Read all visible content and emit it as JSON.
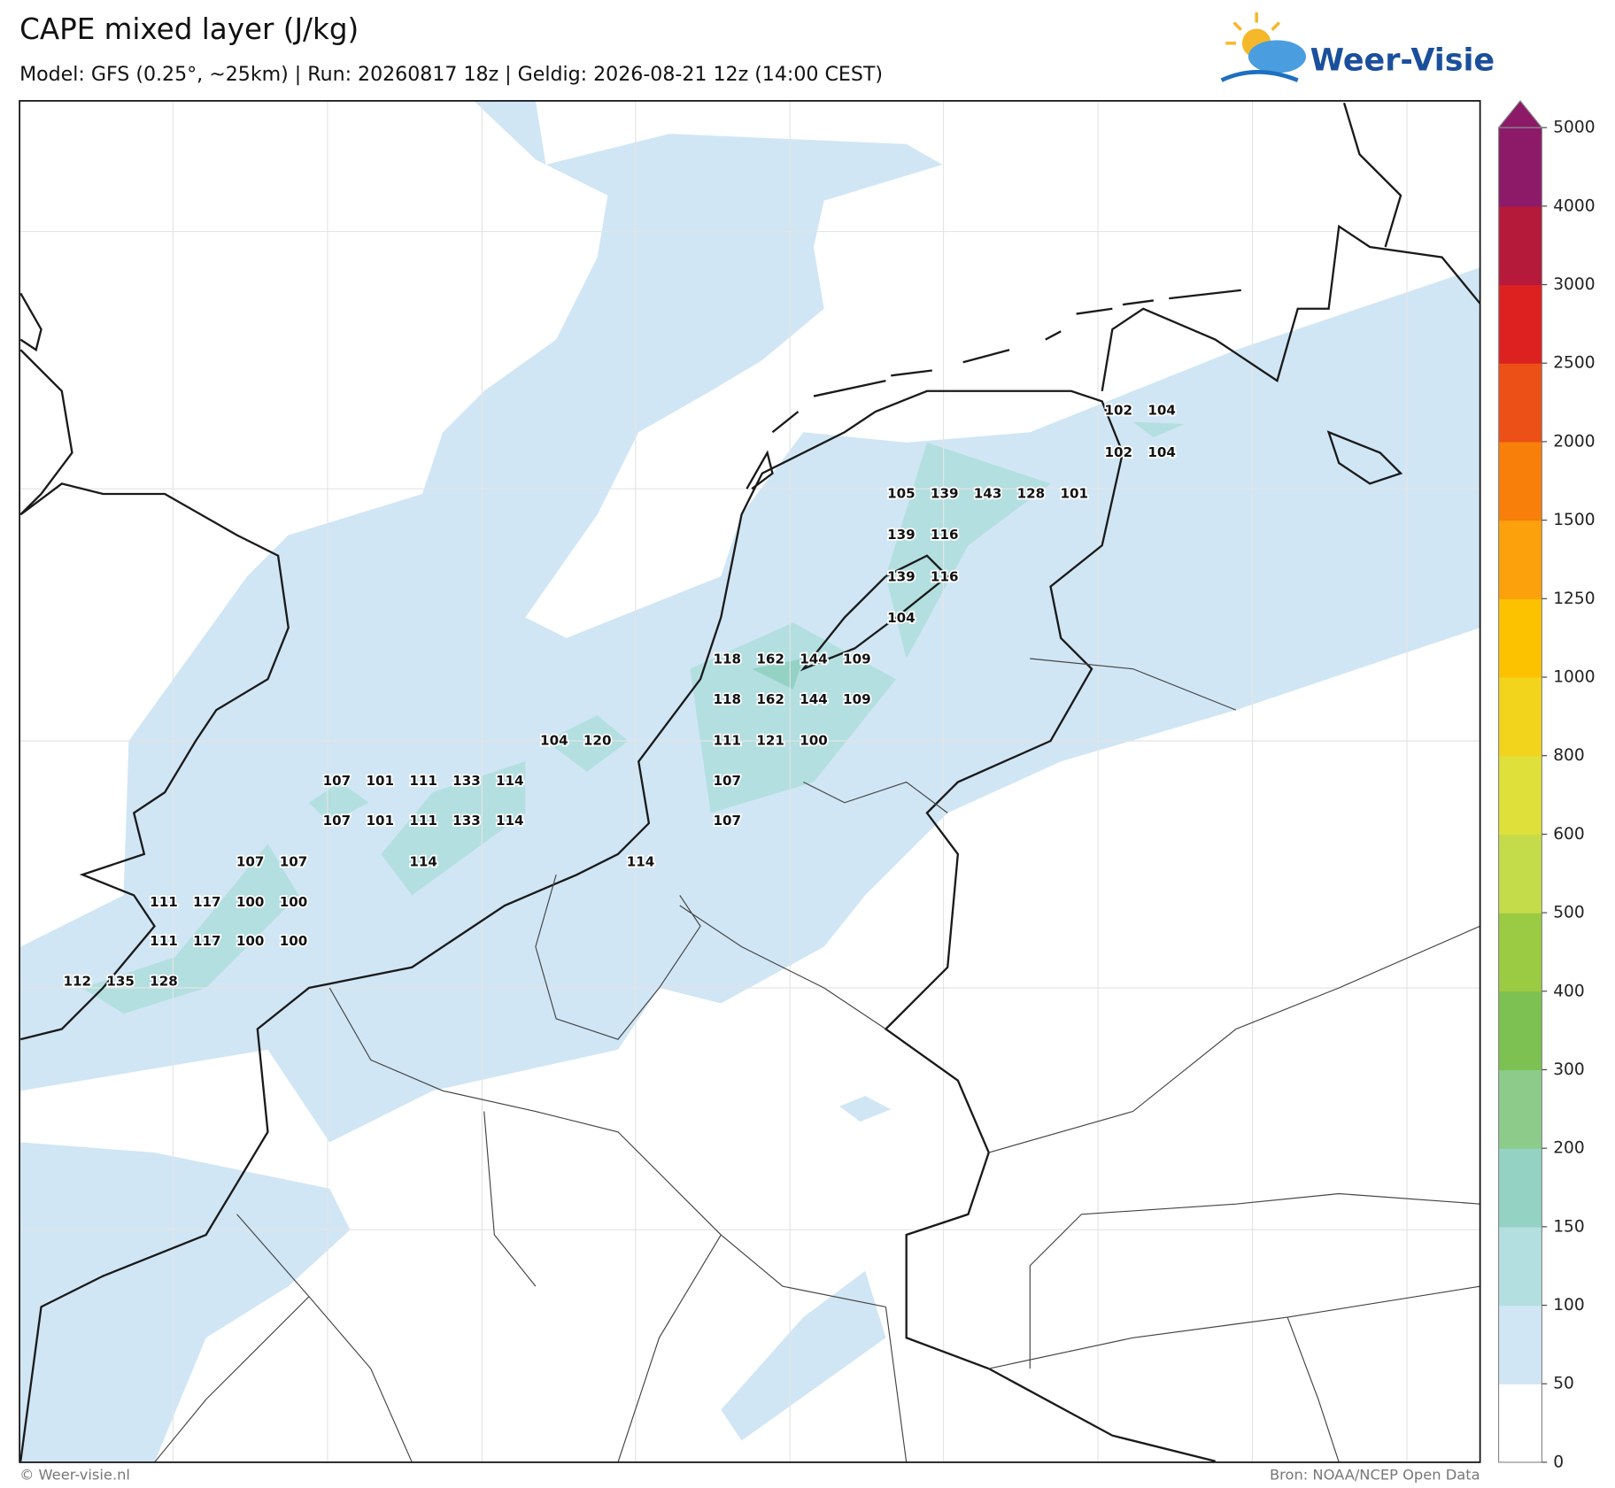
{
  "header": {
    "title": "CAPE mixed layer (J/kg)",
    "subtitle": "Model: GFS (0.25°, ~25km)  |  Run: 20260817 18z  |  Geldig: 2026-08-21 12z (14:00 CEST)",
    "logo": "Weer-Visie"
  },
  "colorbar": {
    "ticks": [
      0,
      50,
      100,
      150,
      200,
      300,
      400,
      500,
      600,
      800,
      1000,
      1250,
      1500,
      2000,
      2500,
      3000,
      4000,
      5000
    ],
    "colors": [
      "#ffffff",
      "#d0e6f5",
      "#b3dfe0",
      "#94d2c4",
      "#8ccb8a",
      "#7cc152",
      "#9acb43",
      "#c4dc4a",
      "#dfe03a",
      "#f2d41c",
      "#fcc200",
      "#fca10c",
      "#f77f0a",
      "#ec5016",
      "#dd2120",
      "#b51a3a",
      "#8c1a68"
    ]
  },
  "point_values": [
    102,
    104,
    102,
    104,
    105,
    139,
    143,
    128,
    101,
    139,
    116,
    139,
    116,
    104,
    118,
    162,
    144,
    109,
    118,
    162,
    144,
    109,
    104,
    120,
    111,
    121,
    100,
    107,
    101,
    111,
    133,
    114,
    107,
    107,
    101,
    111,
    133,
    114,
    107,
    107,
    107,
    114,
    114,
    111,
    117,
    100,
    100,
    111,
    117,
    100,
    100,
    112,
    135,
    128
  ],
  "footer": {
    "left": "© Weer-visie.nl",
    "right": "Bron: NOAA/NCEP Open Data"
  }
}
